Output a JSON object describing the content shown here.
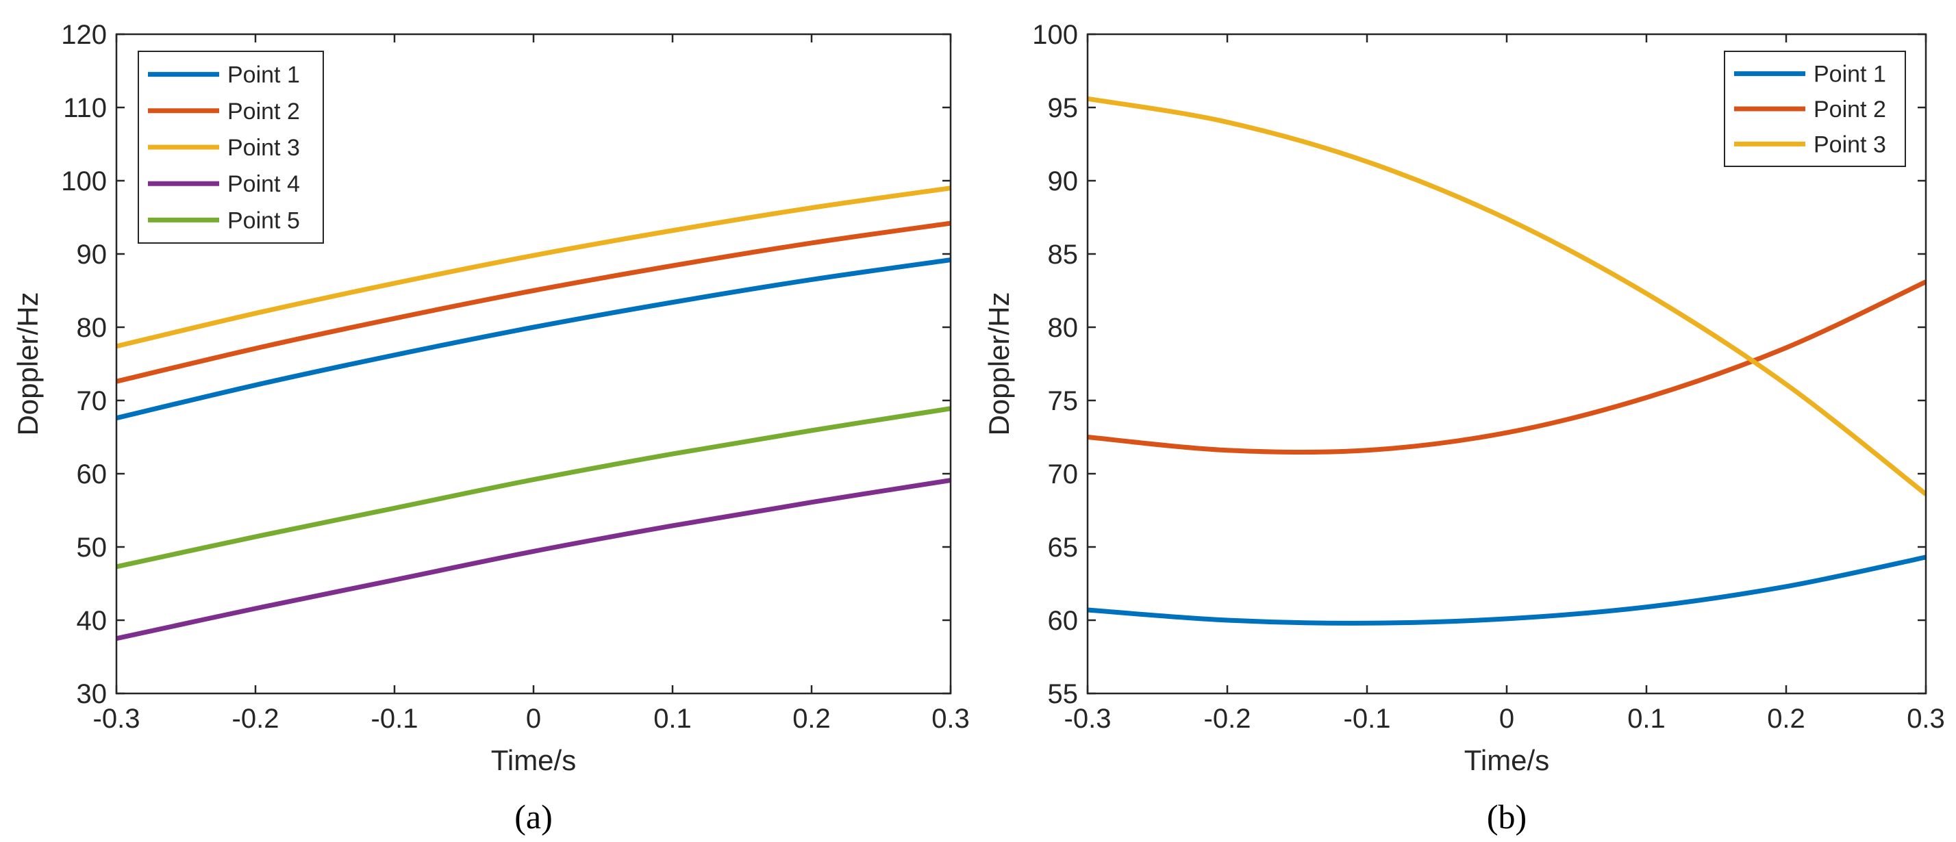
{
  "chart_data": [
    {
      "type": "line",
      "title": "",
      "caption": "(a)",
      "xlabel": "Time/s",
      "ylabel": "Doppler/Hz",
      "xlim": [
        -0.3,
        0.3
      ],
      "ylim": [
        30,
        120
      ],
      "xticks": [
        -0.3,
        -0.2,
        -0.1,
        0,
        0.1,
        0.2,
        0.3
      ],
      "xtick_labels": [
        "-0.3",
        "-0.2",
        "-0.1",
        "0",
        "0.1",
        "0.2",
        "0.3"
      ],
      "yticks": [
        30,
        40,
        50,
        60,
        70,
        80,
        90,
        100,
        110,
        120
      ],
      "ytick_labels": [
        "30",
        "40",
        "50",
        "60",
        "70",
        "80",
        "90",
        "100",
        "110",
        "120"
      ],
      "grid": false,
      "legend_position": "top-left",
      "x": [
        -0.3,
        -0.2,
        -0.1,
        0,
        0.1,
        0.2,
        0.3
      ],
      "series": [
        {
          "name": "Point 1",
          "color": "#0072BD",
          "values": [
            67.6,
            72.1,
            76.2,
            80.0,
            83.4,
            86.5,
            89.2
          ]
        },
        {
          "name": "Point 2",
          "color": "#D95319",
          "values": [
            72.6,
            77.1,
            81.2,
            85.0,
            88.4,
            91.5,
            94.2
          ]
        },
        {
          "name": "Point 3",
          "color": "#EDB120",
          "values": [
            77.4,
            81.9,
            86.0,
            89.8,
            93.2,
            96.3,
            99.0
          ]
        },
        {
          "name": "Point 4",
          "color": "#7E2F8E",
          "values": [
            37.5,
            41.6,
            45.5,
            49.4,
            52.9,
            56.1,
            59.1
          ]
        },
        {
          "name": "Point 5",
          "color": "#77AC30",
          "values": [
            47.3,
            51.4,
            55.3,
            59.2,
            62.7,
            65.9,
            68.9
          ]
        }
      ]
    },
    {
      "type": "line",
      "title": "",
      "caption": "(b)",
      "xlabel": "Time/s",
      "ylabel": "Doppler/Hz",
      "xlim": [
        -0.3,
        0.3
      ],
      "ylim": [
        55,
        100
      ],
      "xticks": [
        -0.3,
        -0.2,
        -0.1,
        0,
        0.1,
        0.2,
        0.3
      ],
      "xtick_labels": [
        "-0.3",
        "-0.2",
        "-0.1",
        "0",
        "0.1",
        "0.2",
        "0.3"
      ],
      "yticks": [
        55,
        60,
        65,
        70,
        75,
        80,
        85,
        90,
        95,
        100
      ],
      "ytick_labels": [
        "55",
        "60",
        "65",
        "70",
        "75",
        "80",
        "85",
        "90",
        "95",
        "100"
      ],
      "grid": false,
      "legend_position": "top-right",
      "x": [
        -0.3,
        -0.2,
        -0.1,
        0,
        0.1,
        0.2,
        0.3
      ],
      "series": [
        {
          "name": "Point 1",
          "color": "#0072BD",
          "values": [
            60.7,
            60.0,
            59.8,
            60.1,
            60.9,
            62.3,
            64.3
          ]
        },
        {
          "name": "Point 2",
          "color": "#D95319",
          "values": [
            72.5,
            71.6,
            71.6,
            72.8,
            75.2,
            78.6,
            83.1
          ]
        },
        {
          "name": "Point 3",
          "color": "#EDB120",
          "values": [
            95.6,
            94.0,
            91.3,
            87.4,
            82.3,
            76.1,
            68.6
          ]
        }
      ]
    }
  ]
}
